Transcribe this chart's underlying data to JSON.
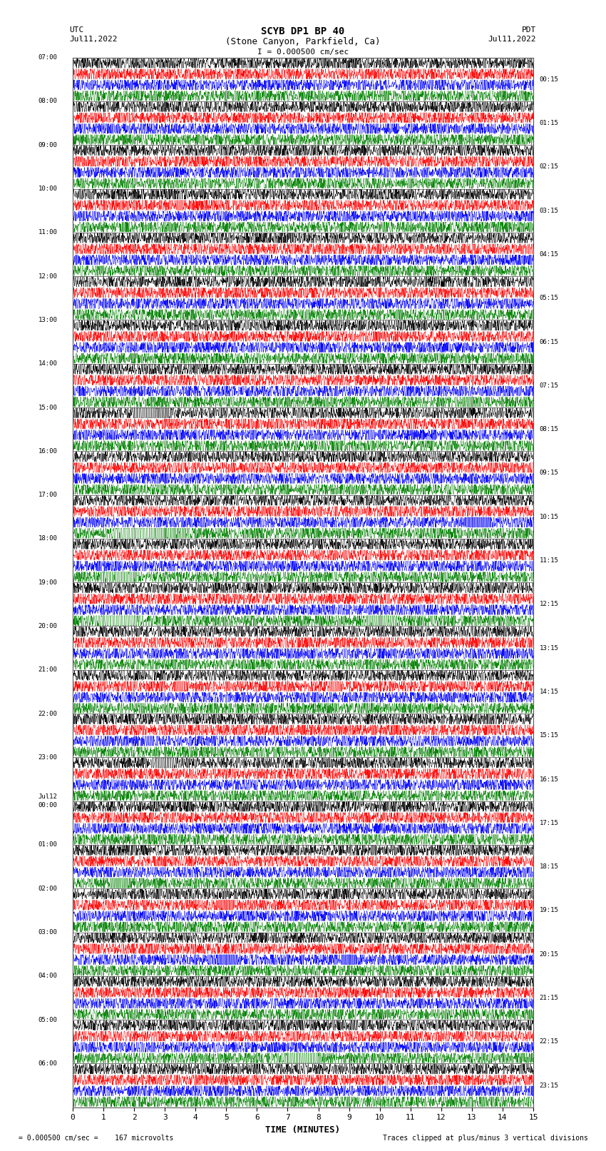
{
  "title_line1": "SCYB DP1 BP 40",
  "title_line2": "(Stone Canyon, Parkfield, Ca)",
  "scale_text": "I = 0.000500 cm/sec",
  "utc_label": "UTC",
  "pdt_label": "PDT",
  "date_left": "Jul11,2022",
  "date_right": "Jul11,2022",
  "xlabel": "TIME (MINUTES)",
  "footer_left": "= 0.000500 cm/sec =    167 microvolts",
  "footer_right": "Traces clipped at plus/minus 3 vertical divisions",
  "bg_color": "#ffffff",
  "plot_bg_color": "#ffffff",
  "grid_color": "#888888",
  "left_times": [
    "07:00",
    "08:00",
    "09:00",
    "10:00",
    "11:00",
    "12:00",
    "13:00",
    "14:00",
    "15:00",
    "16:00",
    "17:00",
    "18:00",
    "19:00",
    "20:00",
    "21:00",
    "22:00",
    "23:00",
    "Jul12\n00:00",
    "01:00",
    "02:00",
    "03:00",
    "04:00",
    "05:00",
    "06:00"
  ],
  "right_times": [
    "00:15",
    "01:15",
    "02:15",
    "03:15",
    "04:15",
    "05:15",
    "06:15",
    "07:15",
    "08:15",
    "09:15",
    "10:15",
    "11:15",
    "12:15",
    "13:15",
    "14:15",
    "15:15",
    "16:15",
    "17:15",
    "18:15",
    "19:15",
    "20:15",
    "21:15",
    "22:15",
    "23:15"
  ],
  "n_rows": 24,
  "traces_per_row": 4,
  "trace_colors": [
    "black",
    "red",
    "blue",
    "green"
  ],
  "xmin": 0,
  "xmax": 15,
  "xticks": [
    0,
    1,
    2,
    3,
    4,
    5,
    6,
    7,
    8,
    9,
    10,
    11,
    12,
    13,
    14,
    15
  ],
  "noise_amplitude": 0.035,
  "clip_level": 3.0,
  "seed": 42,
  "n_points": 9000
}
